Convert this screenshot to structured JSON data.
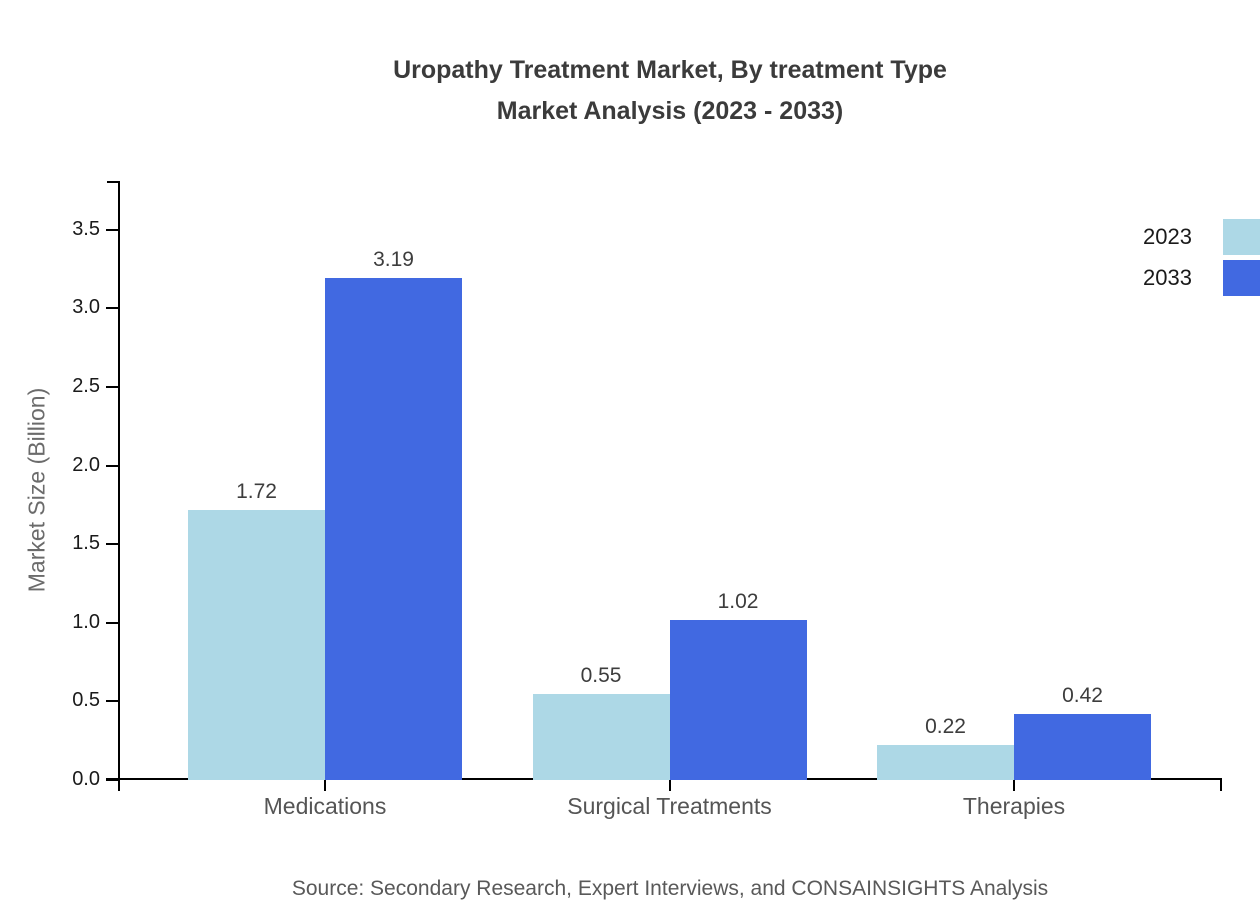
{
  "page": {
    "title": "Uropathy Treatment Market, By treatment Type",
    "subtitle": "Market Analysis (2023 - 2033)",
    "source": "Source: Secondary Research, Expert Interviews, and CONSAINSIGHTS Analysis"
  },
  "chart_data": {
    "type": "bar",
    "title": "Uropathy Treatment Market, By treatment Type Market Analysis (2023 - 2033)",
    "categories": [
      "Medications",
      "Surgical Treatments",
      "Therapies"
    ],
    "series": [
      {
        "name": "2023",
        "color": "#ADD8E6",
        "values": [
          1.72,
          0.55,
          0.22
        ]
      },
      {
        "name": "2033",
        "color": "#4169E1",
        "values": [
          3.19,
          1.02,
          0.42
        ]
      }
    ],
    "xlabel": "",
    "ylabel": "Market Size (Billion)",
    "ylim": [
      0,
      3.81
    ],
    "yticks": [
      0.0,
      0.5,
      1.0,
      1.5,
      2.0,
      2.5,
      3.0,
      3.5
    ],
    "grid": false,
    "value_labels": true,
    "legend_position": "upper right",
    "axis_color": "#000000",
    "background": "#ffffff"
  }
}
